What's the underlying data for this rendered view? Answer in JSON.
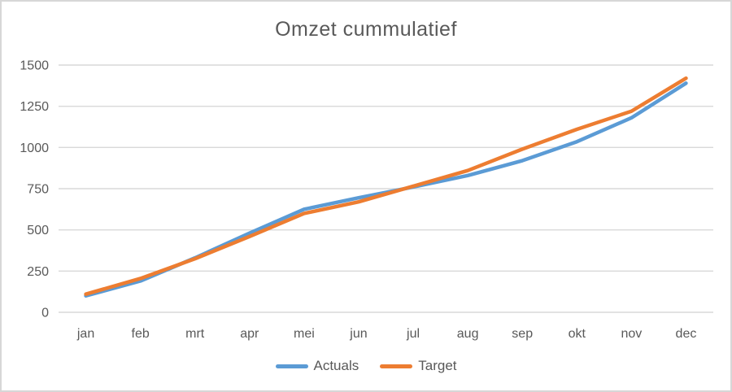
{
  "chart_data": {
    "type": "line",
    "title": "Omzet cummulatief",
    "categories": [
      "jan",
      "feb",
      "mrt",
      "apr",
      "mei",
      "jun",
      "jul",
      "aug",
      "sep",
      "okt",
      "nov",
      "dec"
    ],
    "series": [
      {
        "name": "Actuals",
        "color": "#5B9BD5",
        "values": [
          100,
          190,
          330,
          480,
          625,
          695,
          760,
          830,
          920,
          1035,
          1180,
          1390
        ]
      },
      {
        "name": "Target",
        "color": "#ED7D31",
        "values": [
          110,
          205,
          325,
          460,
          600,
          670,
          765,
          860,
          990,
          1110,
          1220,
          1420
        ]
      }
    ],
    "xlabel": "",
    "ylabel": "",
    "ylim": [
      0,
      1500
    ],
    "yticks": [
      0,
      250,
      500,
      750,
      1000,
      1250,
      1500
    ],
    "grid": "horizontal",
    "gridline_color": "#d9d9d9",
    "legend_position": "bottom",
    "text_color": "#595959"
  }
}
